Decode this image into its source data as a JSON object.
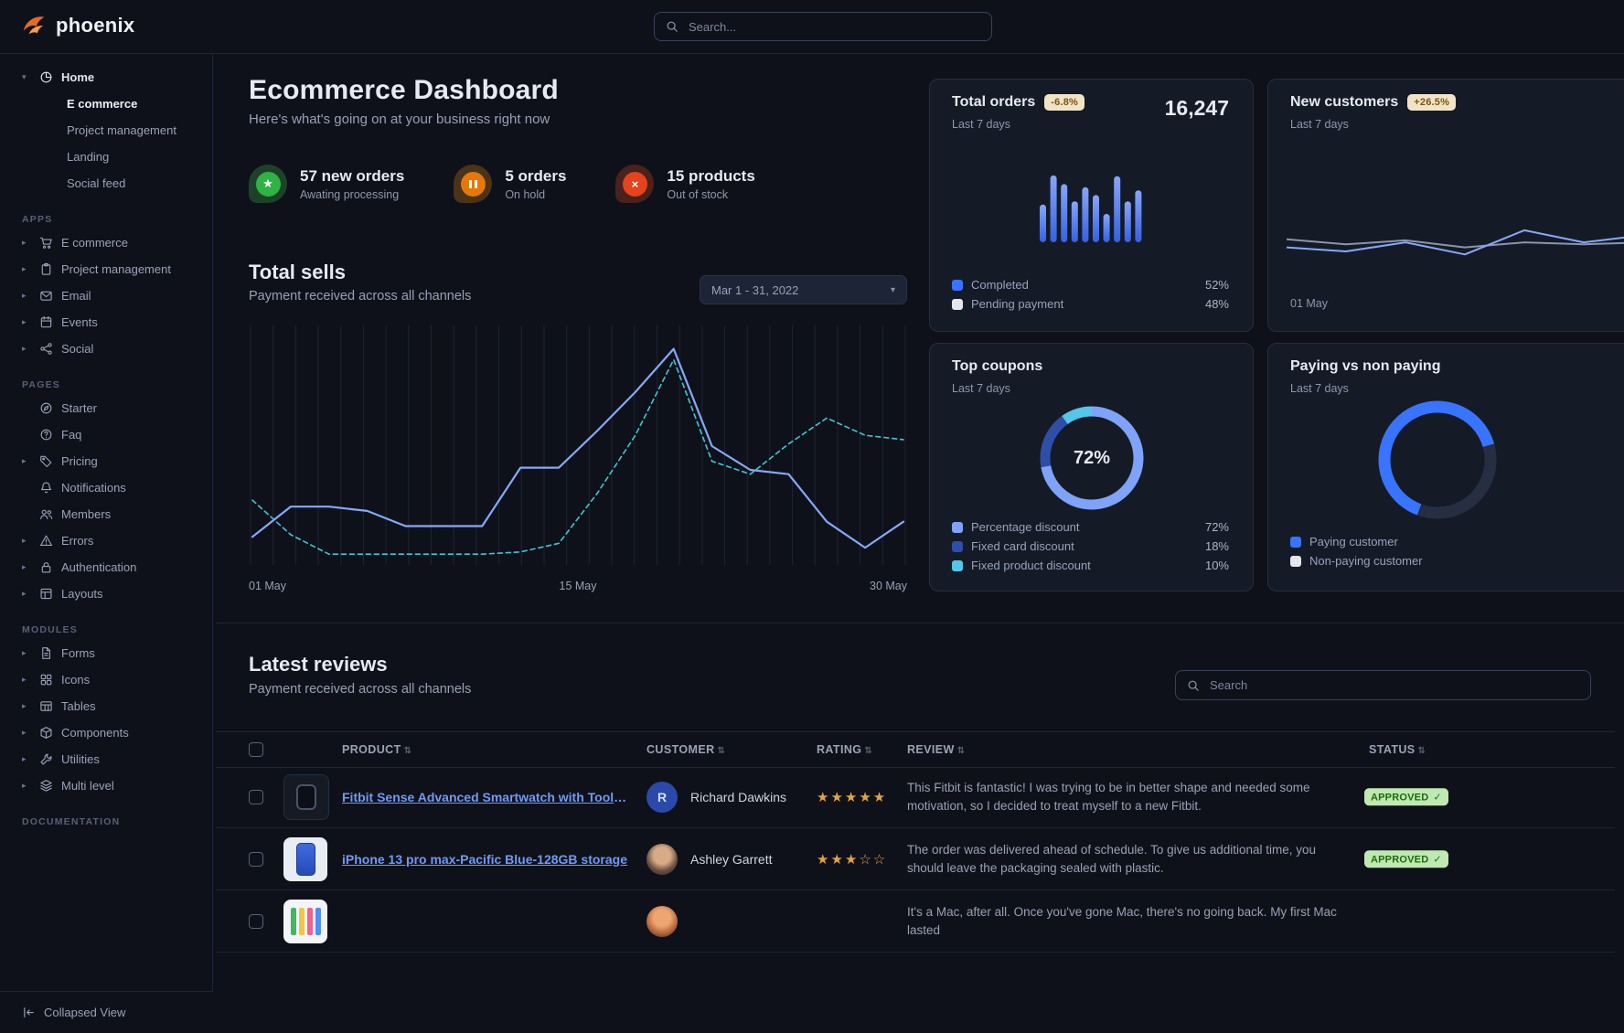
{
  "brand": {
    "name": "phoenix",
    "accent_color": "#e5780b"
  },
  "topbar": {
    "search_placeholder": "Search..."
  },
  "sidebar": {
    "home": {
      "label": "Home",
      "icon": "pie",
      "children": [
        {
          "label": "E commerce",
          "active": true
        },
        {
          "label": "Project management",
          "active": false
        },
        {
          "label": "Landing",
          "active": false
        },
        {
          "label": "Social feed",
          "active": false
        }
      ]
    },
    "sections": [
      {
        "title": "APPS",
        "items": [
          {
            "label": "E commerce",
            "icon": "cart",
            "caret": true
          },
          {
            "label": "Project management",
            "icon": "clipboard",
            "caret": true
          },
          {
            "label": "Email",
            "icon": "mail",
            "caret": true
          },
          {
            "label": "Events",
            "icon": "calendar",
            "caret": true
          },
          {
            "label": "Social",
            "icon": "share",
            "caret": true
          }
        ]
      },
      {
        "title": "PAGES",
        "items": [
          {
            "label": "Starter",
            "icon": "compass",
            "caret": false
          },
          {
            "label": "Faq",
            "icon": "question",
            "caret": false
          },
          {
            "label": "Pricing",
            "icon": "tag",
            "caret": true
          },
          {
            "label": "Notifications",
            "icon": "bell",
            "caret": false
          },
          {
            "label": "Members",
            "icon": "users",
            "caret": false
          },
          {
            "label": "Errors",
            "icon": "warning",
            "caret": true
          },
          {
            "label": "Authentication",
            "icon": "lock",
            "caret": true
          },
          {
            "label": "Layouts",
            "icon": "layout",
            "caret": true
          }
        ]
      },
      {
        "title": "MODULES",
        "items": [
          {
            "label": "Forms",
            "icon": "file-text",
            "caret": true
          },
          {
            "label": "Icons",
            "icon": "grid",
            "caret": true
          },
          {
            "label": "Tables",
            "icon": "table",
            "caret": true
          },
          {
            "label": "Components",
            "icon": "box",
            "caret": true
          },
          {
            "label": "Utilities",
            "icon": "wrench",
            "caret": true
          },
          {
            "label": "Multi level",
            "icon": "layers",
            "caret": true
          }
        ]
      },
      {
        "title": "DOCUMENTATION",
        "items": []
      }
    ],
    "collapsed_view_label": "Collapsed View"
  },
  "header": {
    "title": "Ecommerce Dashboard",
    "subtitle": "Here's what's going on at your business right now"
  },
  "stats": [
    {
      "value": "57 new orders",
      "caption": "Awating processing",
      "icon": "star",
      "color": "#2fb344",
      "tint": "#1e4229"
    },
    {
      "value": "5 orders",
      "caption": "On hold",
      "icon": "pause",
      "color": "#e5780b",
      "tint": "#4a3317"
    },
    {
      "value": "15 products",
      "caption": "Out of stock",
      "icon": "x",
      "color": "#e5431d",
      "tint": "#4a221b"
    }
  ],
  "total_sells": {
    "title": "Total sells",
    "subtitle": "Payment received across all channels",
    "date_range": "Mar 1 - 31, 2022"
  },
  "chart_data": [
    {
      "id": "total_sells",
      "type": "line",
      "title": "Total sells",
      "x_axis_labels": [
        "01 May",
        "15 May",
        "30 May"
      ],
      "ylim": [
        0,
        110
      ],
      "grid": "vertical",
      "series": [
        {
          "name": "sales-current",
          "style": "solid",
          "color": "#85a9f8",
          "values": [
            13,
            27,
            27,
            25,
            18,
            18,
            18,
            45,
            45,
            62,
            80,
            100,
            55,
            44,
            42,
            20,
            8,
            20
          ]
        },
        {
          "name": "sales-previous",
          "style": "dashed",
          "color": "#3fc7d4",
          "values": [
            30,
            14,
            5,
            5,
            5,
            5,
            5,
            6,
            10,
            33,
            60,
            95,
            48,
            42,
            56,
            68,
            60,
            58
          ]
        }
      ]
    },
    {
      "id": "total_orders_bars",
      "type": "bar",
      "values": [
        48,
        85,
        74,
        52,
        70,
        60,
        36,
        84,
        52,
        66
      ],
      "color_top": "#87a6f9",
      "color_bottom": "#3561e2"
    },
    {
      "id": "new_customers_line",
      "type": "line",
      "x_axis_labels": [
        "01 May"
      ],
      "series": [
        {
          "name": "secondary",
          "style": "solid",
          "color": "#8a94ad",
          "values": [
            52,
            47,
            51,
            44,
            49,
            47,
            49,
            48
          ]
        },
        {
          "name": "primary",
          "style": "solid",
          "color": "#85a9f8",
          "values": [
            44,
            40,
            49,
            37,
            61,
            49,
            56,
            52
          ]
        }
      ]
    },
    {
      "id": "top_coupons_donut",
      "type": "pie",
      "center_label": "72%",
      "segments": [
        {
          "label": "Percentage discount",
          "value": 72,
          "color": "#7ea3f8"
        },
        {
          "label": "Fixed card discount",
          "value": 18,
          "color": "#2e4ea8"
        },
        {
          "label": "Fixed product discount",
          "value": 10,
          "color": "#54c7e8"
        }
      ]
    },
    {
      "id": "paying_donut",
      "type": "pie",
      "segments": [
        {
          "label": "Paying customer",
          "value": 65,
          "color": "#3874ff"
        },
        {
          "label": "Non-paying customer",
          "value": 35,
          "color": "#262e41"
        }
      ]
    }
  ],
  "cards": {
    "total_orders": {
      "title": "Total orders",
      "badge": "-6.8%",
      "period": "Last 7 days",
      "value": "16,247",
      "legend": [
        {
          "label": "Completed",
          "value": "52%",
          "color": "#3874ff"
        },
        {
          "label": "Pending payment",
          "value": "48%",
          "color": "#e3e6ed"
        }
      ]
    },
    "new_customers": {
      "title": "New customers",
      "badge": "+26.5%",
      "period": "Last 7 days",
      "x_label": "01 May"
    },
    "top_coupons": {
      "title": "Top coupons",
      "period": "Last 7 days",
      "center_value": "72%",
      "legend": [
        {
          "label": "Percentage discount",
          "value": "72%",
          "color": "#7ea3f8"
        },
        {
          "label": "Fixed card discount",
          "value": "18%",
          "color": "#2e4ea8"
        },
        {
          "label": "Fixed product discount",
          "value": "10%",
          "color": "#54c7e8"
        }
      ]
    },
    "paying": {
      "title": "Paying vs non paying",
      "period": "Last 7 days",
      "legend": [
        {
          "label": "Paying customer",
          "color": "#3874ff"
        },
        {
          "label": "Non-paying customer",
          "color": "#e3e6ed"
        }
      ]
    }
  },
  "reviews": {
    "title": "Latest reviews",
    "subtitle": "Payment received across all channels",
    "search_placeholder": "Search",
    "columns": [
      "PRODUCT",
      "CUSTOMER",
      "RATING",
      "REVIEW",
      "STATUS"
    ],
    "rows": [
      {
        "product": "Fitbit Sense Advanced Smartwatch with Tools fo...",
        "thumb": "watch",
        "customer": "Richard Dawkins",
        "avatar_text": "R",
        "avatar_color": "#2b49a8",
        "avatar_hi": "",
        "rating": 5,
        "review": "This Fitbit is fantastic! I was trying to be in better shape and needed some motivation, so I decided to treat myself to a new Fitbit.",
        "status": "APPROVED"
      },
      {
        "product": "iPhone 13 pro max-Pacific Blue-128GB storage",
        "thumb": "phone",
        "customer": "Ashley Garrett",
        "avatar_text": "",
        "avatar_color": "#6b4f3d",
        "avatar_hi": "#d7ab88",
        "rating": 3,
        "review": "The order was delivered ahead of schedule. To give us additional time, you should leave the packaging sealed with plastic.",
        "status": "APPROVED"
      },
      {
        "product": "",
        "thumb": "imac",
        "customer": "",
        "avatar_text": "",
        "avatar_color": "#b5683c",
        "avatar_hi": "#efa571",
        "rating": null,
        "review": "It's a Mac, after all. Once you've gone Mac, there's no going back. My first Mac lasted",
        "status": ""
      }
    ]
  }
}
